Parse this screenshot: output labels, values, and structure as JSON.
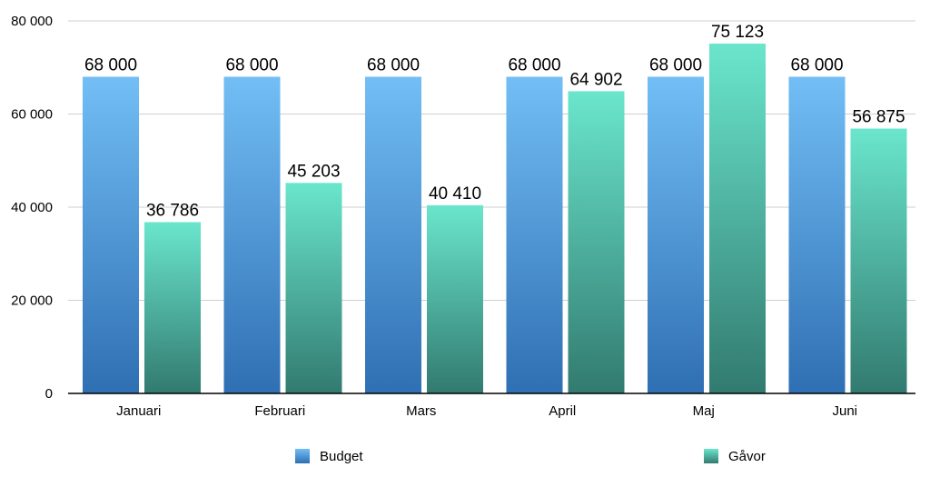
{
  "chart_data": {
    "type": "bar",
    "title": "",
    "xlabel": "",
    "ylabel": "",
    "ylim": [
      0,
      80000
    ],
    "yticks": [
      0,
      20000,
      40000,
      60000,
      80000
    ],
    "grid": true,
    "legend_position": "bottom",
    "categories": [
      "Januari",
      "Februari",
      "Mars",
      "April",
      "Maj",
      "Juni"
    ],
    "series": [
      {
        "name": "Budget",
        "values": [
          68000,
          68000,
          68000,
          68000,
          68000,
          68000
        ],
        "color_top": "#72bef5",
        "color_bottom": "#2f6fb3"
      },
      {
        "name": "Gåvor",
        "values": [
          36786,
          45203,
          40410,
          64902,
          75123,
          56875
        ],
        "color_top": "#6ae6cc",
        "color_bottom": "#327a70"
      }
    ]
  }
}
